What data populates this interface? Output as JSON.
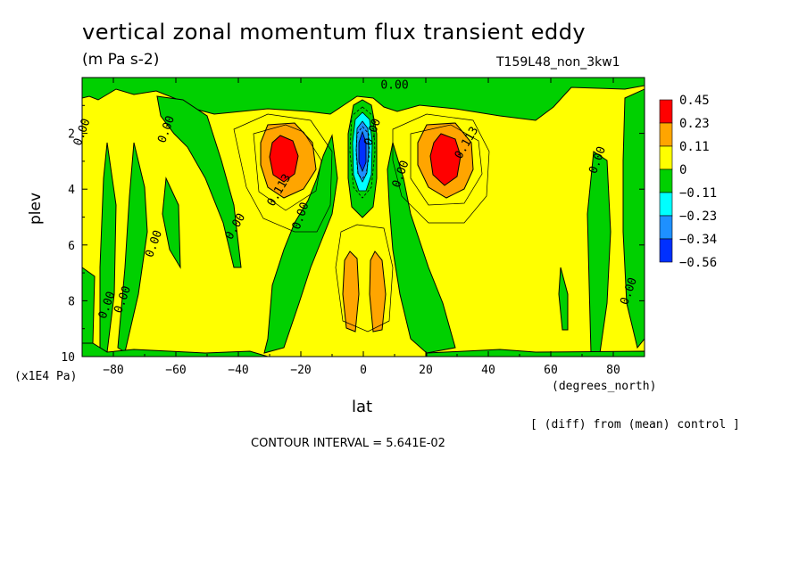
{
  "title": "vertical zonal momentum flux transient eddy",
  "units": "(m Pa s-2)",
  "run_label": "T159L48_non_3kw1",
  "footnote": "[ (diff) from (mean) control ]",
  "contour_interval": "CONTOUR INTERVAL = 5.641E-02",
  "colors": {
    "red": "#ff0000",
    "orange": "#ffa500",
    "yellow": "#ffff00",
    "green": "#00d000",
    "cyan": "#00ffff",
    "lightblue": "#1e90ff",
    "blue": "#0030ff"
  },
  "chart_data": {
    "type": "heatmap",
    "subtype": "filled contour",
    "xlabel": "lat",
    "x_unit": "(degrees_north)",
    "ylabel": "plev",
    "y_unit": "(x1E4 Pa)",
    "xlim": [
      -90,
      90
    ],
    "ylim": [
      10,
      0
    ],
    "x_ticks": [
      -80,
      -60,
      -40,
      -20,
      0,
      20,
      40,
      60,
      80
    ],
    "y_ticks": [
      2,
      4,
      6,
      8,
      10
    ],
    "colorbar": {
      "levels": [
        "0.45",
        "0.23",
        "0.11",
        "0",
        "-0.11",
        "-0.23",
        "-0.34",
        "-0.56"
      ],
      "colors": [
        "#ff0000",
        "#ffa500",
        "#ffff00",
        "#00d000",
        "#00ffff",
        "#1e90ff",
        "#0030ff"
      ]
    },
    "contour_labels": [
      {
        "text": "0.00",
        "lat": 10,
        "plev": 0.4
      },
      {
        "text": "0.00",
        "lat": -62,
        "plev": 1.9
      },
      {
        "text": "0.00",
        "lat": -89,
        "plev": 2.0
      },
      {
        "text": "0.113",
        "lat": -26,
        "plev": 4.1
      },
      {
        "text": "0.113",
        "lat": 34,
        "plev": 2.4
      },
      {
        "text": "0.00",
        "lat": -19,
        "plev": 5.0
      },
      {
        "text": "0.00",
        "lat": 4,
        "plev": 2.0
      },
      {
        "text": "0.00",
        "lat": 13,
        "plev": 3.5
      },
      {
        "text": "0.00",
        "lat": -40,
        "plev": 5.4
      },
      {
        "text": "0.00",
        "lat": -66,
        "plev": 6.0
      },
      {
        "text": "0.00",
        "lat": 76,
        "plev": 3.0
      },
      {
        "text": "0.00",
        "lat": 86,
        "plev": 7.7
      },
      {
        "text": "0.00",
        "lat": -81,
        "plev": 8.2
      },
      {
        "text": "0.00",
        "lat": -76,
        "plev": 8.0
      }
    ],
    "features": [
      {
        "sign": "positive",
        "max_level": "0.45",
        "center_lat": -27,
        "center_plev": 3.0
      },
      {
        "sign": "positive",
        "max_level": "0.45",
        "center_lat": 27,
        "center_plev": 3.0
      },
      {
        "sign": "negative",
        "min_level": "-0.56",
        "center_lat": 0,
        "center_plev": 2.7
      },
      {
        "sign": "positive",
        "max_level": "0.23",
        "center_lat": -4,
        "center_plev": 8.0
      },
      {
        "sign": "positive",
        "max_level": "0.23",
        "center_lat": 4,
        "center_plev": 8.0
      }
    ]
  }
}
